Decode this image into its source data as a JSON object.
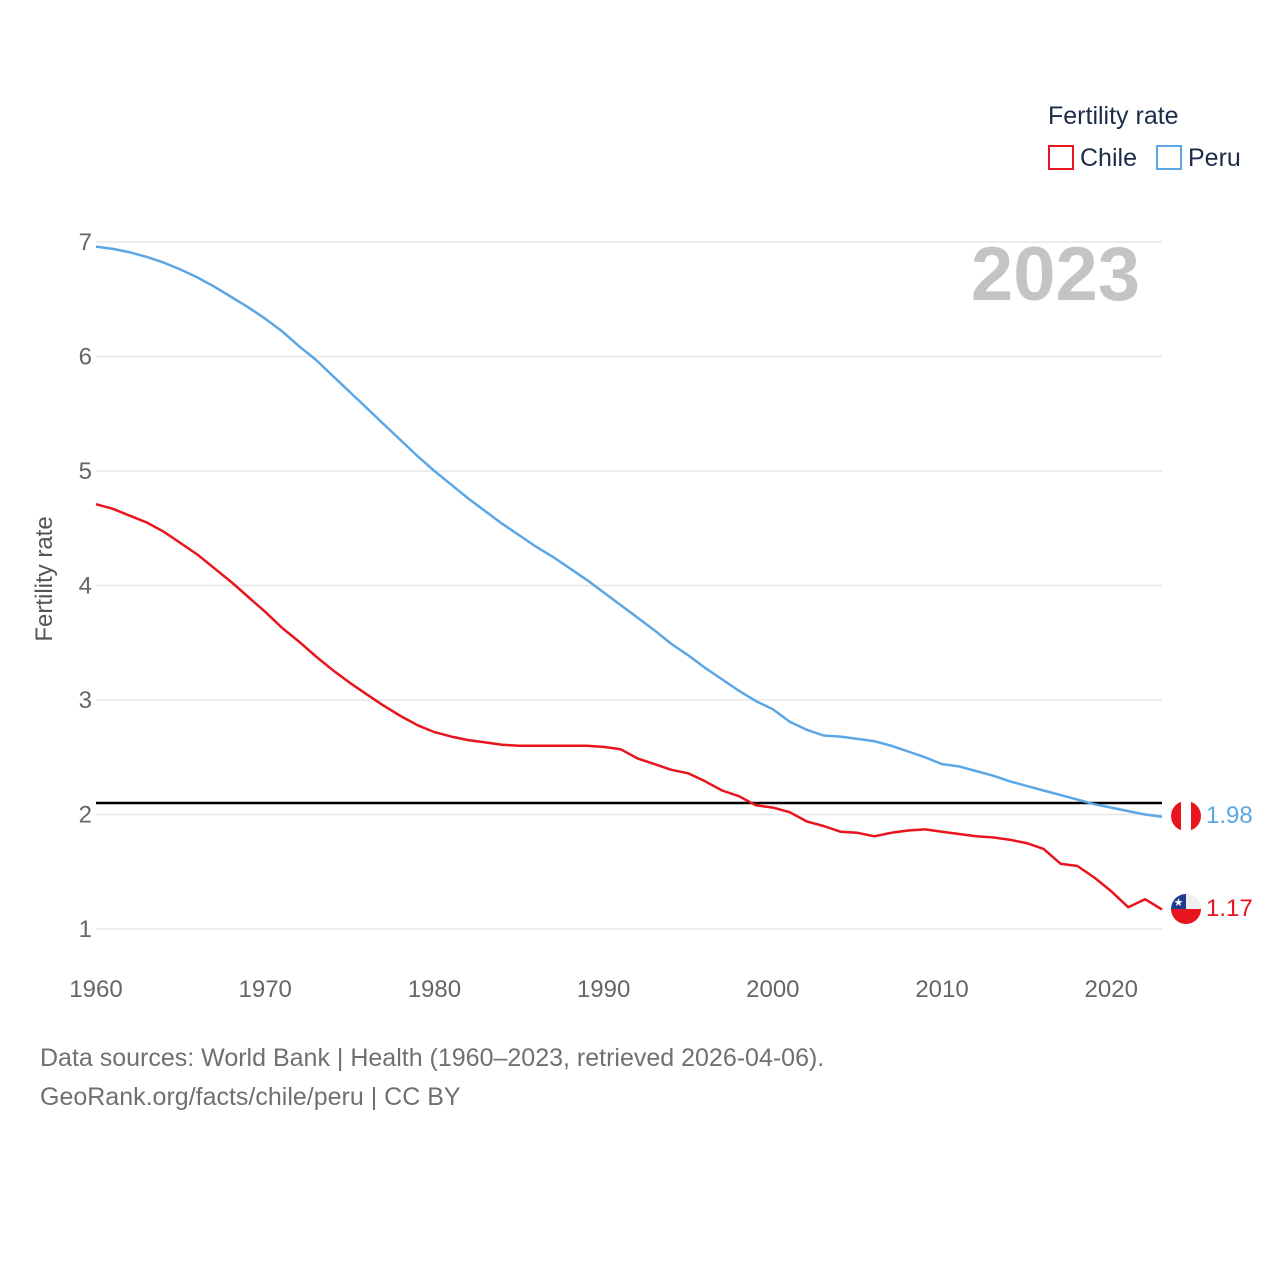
{
  "chart_data": {
    "type": "line",
    "current_year_label": "2023",
    "ylabel": "Fertility rate",
    "xlim": [
      1960,
      2023
    ],
    "ylim": [
      1,
      7
    ],
    "x_ticks": [
      1960,
      1970,
      1980,
      1990,
      2000,
      2010,
      2020
    ],
    "y_ticks": [
      1,
      2,
      3,
      4,
      5,
      6,
      7
    ],
    "reference_line": {
      "value": 2.1
    },
    "legend": {
      "title": "Fertility rate",
      "position": "top-right"
    },
    "series": [
      {
        "name": "Chile",
        "color": "#e8141e",
        "end_label": "1.17",
        "flag_icon": "chile-flag-icon",
        "points": [
          [
            1960,
            4.71
          ],
          [
            1961,
            4.67
          ],
          [
            1962,
            4.61
          ],
          [
            1963,
            4.55
          ],
          [
            1964,
            4.47
          ],
          [
            1965,
            4.37
          ],
          [
            1966,
            4.27
          ],
          [
            1967,
            4.15
          ],
          [
            1968,
            4.03
          ],
          [
            1969,
            3.9
          ],
          [
            1970,
            3.77
          ],
          [
            1971,
            3.63
          ],
          [
            1972,
            3.51
          ],
          [
            1973,
            3.38
          ],
          [
            1974,
            3.26
          ],
          [
            1975,
            3.15
          ],
          [
            1976,
            3.05
          ],
          [
            1977,
            2.95
          ],
          [
            1978,
            2.86
          ],
          [
            1979,
            2.78
          ],
          [
            1980,
            2.72
          ],
          [
            1981,
            2.68
          ],
          [
            1982,
            2.65
          ],
          [
            1983,
            2.63
          ],
          [
            1984,
            2.61
          ],
          [
            1985,
            2.6
          ],
          [
            1986,
            2.6
          ],
          [
            1987,
            2.6
          ],
          [
            1988,
            2.6
          ],
          [
            1989,
            2.6
          ],
          [
            1990,
            2.59
          ],
          [
            1991,
            2.57
          ],
          [
            1992,
            2.49
          ],
          [
            1993,
            2.44
          ],
          [
            1994,
            2.39
          ],
          [
            1995,
            2.36
          ],
          [
            1996,
            2.29
          ],
          [
            1997,
            2.21
          ],
          [
            1998,
            2.16
          ],
          [
            1999,
            2.08
          ],
          [
            2000,
            2.06
          ],
          [
            2001,
            2.02
          ],
          [
            2002,
            1.94
          ],
          [
            2003,
            1.9
          ],
          [
            2004,
            1.85
          ],
          [
            2005,
            1.84
          ],
          [
            2006,
            1.81
          ],
          [
            2007,
            1.84
          ],
          [
            2008,
            1.86
          ],
          [
            2009,
            1.87
          ],
          [
            2010,
            1.85
          ],
          [
            2011,
            1.83
          ],
          [
            2012,
            1.81
          ],
          [
            2013,
            1.8
          ],
          [
            2014,
            1.78
          ],
          [
            2015,
            1.75
          ],
          [
            2016,
            1.7
          ],
          [
            2017,
            1.57
          ],
          [
            2018,
            1.55
          ],
          [
            2019,
            1.45
          ],
          [
            2020,
            1.33
          ],
          [
            2021,
            1.19
          ],
          [
            2022,
            1.26
          ],
          [
            2023,
            1.17
          ]
        ]
      },
      {
        "name": "Peru",
        "color": "#5ba7e6",
        "end_label": "1.98",
        "flag_icon": "peru-flag-icon",
        "points": [
          [
            1960,
            6.96
          ],
          [
            1961,
            6.94
          ],
          [
            1962,
            6.91
          ],
          [
            1963,
            6.87
          ],
          [
            1964,
            6.82
          ],
          [
            1965,
            6.76
          ],
          [
            1966,
            6.69
          ],
          [
            1967,
            6.61
          ],
          [
            1968,
            6.52
          ],
          [
            1969,
            6.43
          ],
          [
            1970,
            6.33
          ],
          [
            1971,
            6.22
          ],
          [
            1972,
            6.09
          ],
          [
            1973,
            5.97
          ],
          [
            1974,
            5.83
          ],
          [
            1975,
            5.69
          ],
          [
            1976,
            5.55
          ],
          [
            1977,
            5.41
          ],
          [
            1978,
            5.27
          ],
          [
            1979,
            5.13
          ],
          [
            1980,
            5.0
          ],
          [
            1981,
            4.88
          ],
          [
            1982,
            4.76
          ],
          [
            1983,
            4.65
          ],
          [
            1984,
            4.54
          ],
          [
            1985,
            4.44
          ],
          [
            1986,
            4.34
          ],
          [
            1987,
            4.25
          ],
          [
            1988,
            4.15
          ],
          [
            1989,
            4.05
          ],
          [
            1990,
            3.94
          ],
          [
            1991,
            3.83
          ],
          [
            1992,
            3.72
          ],
          [
            1993,
            3.61
          ],
          [
            1994,
            3.49
          ],
          [
            1995,
            3.39
          ],
          [
            1996,
            3.28
          ],
          [
            1997,
            3.18
          ],
          [
            1998,
            3.08
          ],
          [
            1999,
            2.99
          ],
          [
            2000,
            2.92
          ],
          [
            2001,
            2.81
          ],
          [
            2002,
            2.74
          ],
          [
            2003,
            2.69
          ],
          [
            2004,
            2.68
          ],
          [
            2005,
            2.66
          ],
          [
            2006,
            2.64
          ],
          [
            2007,
            2.6
          ],
          [
            2008,
            2.55
          ],
          [
            2009,
            2.5
          ],
          [
            2010,
            2.44
          ],
          [
            2011,
            2.42
          ],
          [
            2012,
            2.38
          ],
          [
            2013,
            2.34
          ],
          [
            2014,
            2.29
          ],
          [
            2015,
            2.25
          ],
          [
            2016,
            2.21
          ],
          [
            2017,
            2.17
          ],
          [
            2018,
            2.13
          ],
          [
            2019,
            2.09
          ],
          [
            2020,
            2.06
          ],
          [
            2021,
            2.03
          ],
          [
            2022,
            2.0
          ],
          [
            2023,
            1.98
          ]
        ]
      }
    ]
  },
  "footer": {
    "sources": "Data sources: World Bank | Health (1960–2023, retrieved 2026-04-06).",
    "credit": "GeoRank.org/facts/chile/peru | CC BY"
  }
}
